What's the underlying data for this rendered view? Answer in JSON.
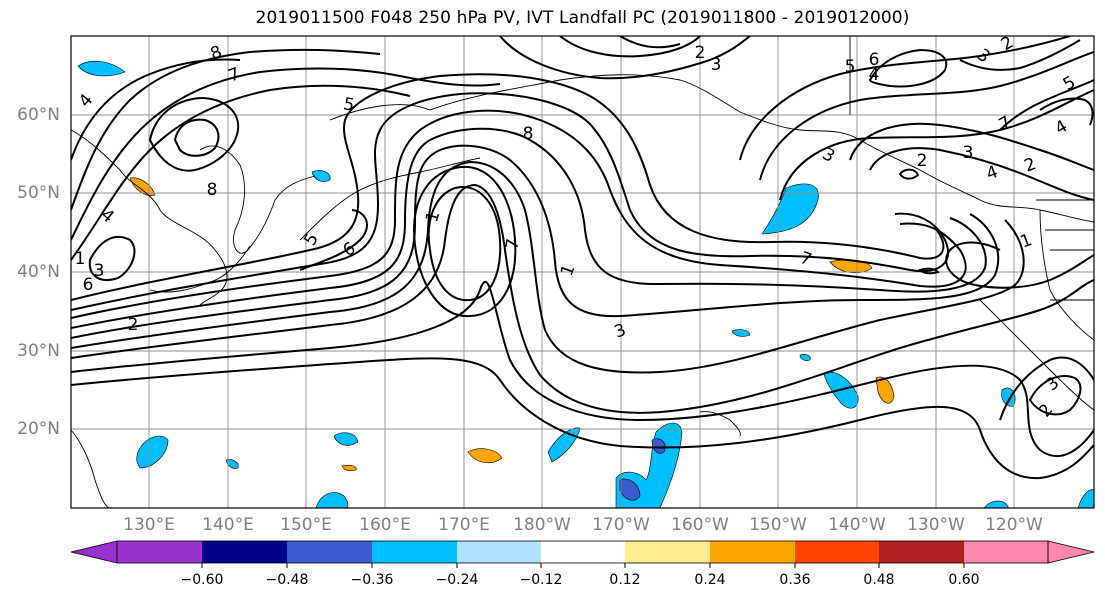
{
  "title": "2019011500 F048 250 hPa PV, IVT Landfall PC (2019011800 - 2019012000)",
  "lat_labels": [
    "60°N",
    "50°N",
    "40°N",
    "30°N",
    "20°N"
  ],
  "lon_labels": [
    "130°E",
    "140°E",
    "150°E",
    "160°E",
    "170°E",
    "180°W",
    "170°W",
    "160°W",
    "150°W",
    "140°W",
    "130°W",
    "120°W"
  ],
  "colorbar": {
    "ticks": [
      "−0.60",
      "−0.48",
      "−0.36",
      "−0.24",
      "−0.12",
      "0.12",
      "0.24",
      "0.36",
      "0.48",
      "0.60"
    ],
    "colors": [
      "#9932cc",
      "#00008b",
      "#3a5bcd",
      "#00bfff",
      "#b0e2ff",
      "#ffffff",
      "#ffec8b",
      "#ffa500",
      "#ff4500",
      "#b22222",
      "#ff87b0"
    ]
  },
  "contour_labels": [
    {
      "text": "8"
    },
    {
      "text": "7"
    },
    {
      "text": "5"
    },
    {
      "text": "4"
    },
    {
      "text": "8"
    },
    {
      "text": "4"
    },
    {
      "text": "3"
    },
    {
      "text": "2"
    },
    {
      "text": "1"
    },
    {
      "text": "6"
    },
    {
      "text": "5"
    },
    {
      "text": "6"
    },
    {
      "text": "8"
    },
    {
      "text": "1"
    },
    {
      "text": "7"
    },
    {
      "text": "1"
    },
    {
      "text": "3"
    },
    {
      "text": "2"
    },
    {
      "text": "3"
    },
    {
      "text": "5"
    },
    {
      "text": "6"
    },
    {
      "text": "4"
    },
    {
      "text": "3"
    },
    {
      "text": "3"
    },
    {
      "text": "4"
    },
    {
      "text": "2"
    },
    {
      "text": "7"
    },
    {
      "text": "4"
    },
    {
      "text": "1"
    },
    {
      "text": "7"
    },
    {
      "text": "3"
    },
    {
      "text": "2"
    },
    {
      "text": "5"
    },
    {
      "text": "2"
    },
    {
      "text": "3"
    },
    {
      "text": "2"
    }
  ]
}
